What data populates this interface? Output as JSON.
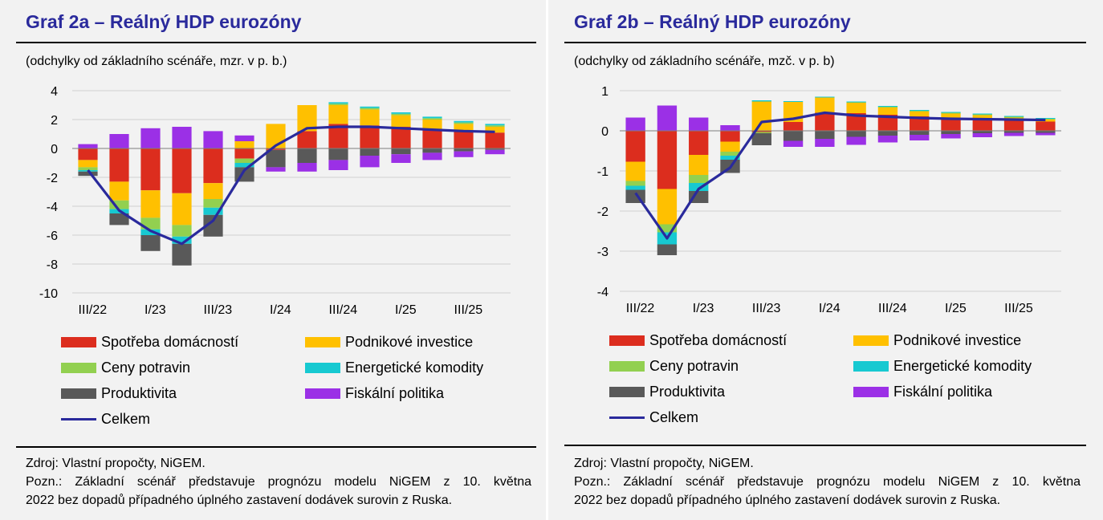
{
  "panels": [
    {
      "title": "Graf 2a – Reálný HDP eurozóny",
      "subtitle": "(odchylky od základního scénáře, mzr. v p. b.)",
      "source": "Zdroj: Vlastní propočty, NiGEM.",
      "note_line1": "Pozn.: Základní scénář představuje prognózu modelu NiGEM z 10. května",
      "note_line2": "2022 bez dopadů případného úplného zastavení dodávek surovin z Ruska."
    },
    {
      "title": "Graf 2b – Reálný HDP eurozóny",
      "subtitle": "(odchylky od základního scénáře, mzč. v p. b)",
      "source": "Zdroj: Vlastní propočty, NiGEM.",
      "note_line1": "Pozn.: Základní scénář představuje prognózu modelu NiGEM z 10. května",
      "note_line2": "2022 bez dopadů případného úplného zastavení dodávek surovin z Ruska."
    }
  ],
  "legend": {
    "spotreba": "Spotřeba domácností",
    "investice": "Podnikové investice",
    "potraviny": "Ceny potravin",
    "energie": "Energetické komodity",
    "produktivita": "Produktivita",
    "fiskal": "Fiskální politika",
    "celkem": "Celkem"
  },
  "colors": {
    "spotreba": "#dc2d1e",
    "investice": "#ffc000",
    "potraviny": "#92d050",
    "energie": "#17c9d1",
    "produktivita": "#595959",
    "fiskal": "#9b30e6",
    "celkem": "#2a2a9c"
  },
  "chart_data": [
    {
      "type": "bar",
      "stacked": true,
      "categories": [
        "III/22",
        "IV/22",
        "I/23",
        "II/23",
        "III/23",
        "IV/23",
        "I/24",
        "II/24",
        "III/24",
        "IV/24",
        "I/25",
        "II/25",
        "III/25",
        "IV/25"
      ],
      "x_tick_labels": [
        "III/22",
        "I/23",
        "III/23",
        "I/24",
        "III/24",
        "I/25",
        "III/25"
      ],
      "ylim": [
        -10,
        4
      ],
      "yticks": [
        -10,
        -8,
        -6,
        -4,
        -2,
        0,
        2,
        4
      ],
      "grid": true,
      "series": [
        {
          "name": "Spotřeba domácností",
          "key": "spotreba",
          "values": [
            -0.8,
            -2.3,
            -2.9,
            -3.1,
            -2.4,
            -0.7,
            -0.1,
            1.2,
            1.7,
            1.6,
            1.5,
            1.3,
            1.2,
            1.1
          ]
        },
        {
          "name": "Podnikové investice",
          "key": "investice",
          "values": [
            -0.5,
            -1.3,
            -1.9,
            -2.2,
            -1.1,
            0.5,
            1.7,
            1.8,
            1.3,
            1.1,
            0.8,
            0.7,
            0.5,
            0.4
          ]
        },
        {
          "name": "Ceny potravin",
          "key": "potraviny",
          "values": [
            -0.2,
            -0.6,
            -0.8,
            -0.8,
            -0.6,
            -0.3,
            0.0,
            0.0,
            0.1,
            0.1,
            0.1,
            0.1,
            0.1,
            0.1
          ]
        },
        {
          "name": "Energetické komodity",
          "key": "energie",
          "values": [
            -0.1,
            -0.3,
            -0.4,
            -0.5,
            -0.5,
            -0.3,
            0.0,
            0.0,
            0.1,
            0.1,
            0.1,
            0.1,
            0.1,
            0.1
          ]
        },
        {
          "name": "Produktivita",
          "key": "produktivita",
          "values": [
            -0.3,
            -0.8,
            -1.1,
            -1.5,
            -1.5,
            -1.0,
            -1.2,
            -1.0,
            -0.8,
            -0.5,
            -0.4,
            -0.3,
            -0.2,
            -0.1
          ]
        },
        {
          "name": "Fiskální politika",
          "key": "fiskal",
          "values": [
            0.3,
            1.0,
            1.4,
            1.5,
            1.2,
            0.4,
            -0.3,
            -0.6,
            -0.7,
            -0.8,
            -0.6,
            -0.5,
            -0.4,
            -0.3
          ]
        }
      ],
      "line": {
        "name": "Celkem",
        "key": "celkem",
        "values": [
          -1.5,
          -4.3,
          -5.7,
          -6.6,
          -5.0,
          -1.5,
          0.2,
          1.4,
          1.5,
          1.5,
          1.4,
          1.3,
          1.2,
          1.15
        ]
      }
    },
    {
      "type": "bar",
      "stacked": true,
      "categories": [
        "III/22",
        "IV/22",
        "I/23",
        "II/23",
        "III/23",
        "IV/23",
        "I/24",
        "II/24",
        "III/24",
        "IV/24",
        "I/25",
        "II/25",
        "III/25",
        "IV/25"
      ],
      "x_tick_labels": [
        "III/22",
        "I/23",
        "III/23",
        "I/24",
        "III/24",
        "I/25",
        "III/25"
      ],
      "ylim": [
        -4,
        1
      ],
      "yticks": [
        -4,
        -3,
        -2,
        -1,
        0,
        1
      ],
      "grid": true,
      "series": [
        {
          "name": "Spotřeba domácností",
          "key": "spotreba",
          "values": [
            -0.77,
            -1.45,
            -0.6,
            -0.27,
            -0.03,
            0.22,
            0.45,
            0.44,
            0.4,
            0.36,
            0.33,
            0.31,
            0.27,
            0.23
          ]
        },
        {
          "name": "Podnikové investice",
          "key": "investice",
          "values": [
            -0.48,
            -0.88,
            -0.5,
            -0.25,
            0.73,
            0.5,
            0.38,
            0.26,
            0.18,
            0.12,
            0.1,
            0.08,
            0.06,
            0.05
          ]
        },
        {
          "name": "Ceny potravin",
          "key": "potraviny",
          "values": [
            -0.12,
            -0.2,
            -0.2,
            -0.1,
            -0.03,
            0.0,
            0.0,
            0.01,
            0.02,
            0.02,
            0.02,
            0.02,
            0.02,
            0.02
          ]
        },
        {
          "name": "Energetické komodity",
          "key": "energie",
          "values": [
            -0.1,
            -0.3,
            -0.2,
            -0.1,
            0.03,
            0.02,
            0.02,
            0.02,
            0.02,
            0.02,
            0.02,
            0.02,
            0.02,
            0.02
          ]
        },
        {
          "name": "Produktivita",
          "key": "produktivita",
          "values": [
            -0.33,
            -0.27,
            -0.3,
            -0.33,
            -0.3,
            -0.25,
            -0.2,
            -0.15,
            -0.12,
            -0.1,
            -0.08,
            -0.06,
            -0.05,
            -0.05
          ]
        },
        {
          "name": "Fiskální politika",
          "key": "fiskal",
          "values": [
            0.33,
            0.63,
            0.33,
            0.14,
            0.0,
            -0.15,
            -0.2,
            -0.2,
            -0.17,
            -0.14,
            -0.11,
            -0.1,
            -0.08,
            -0.06
          ]
        }
      ],
      "line": {
        "name": "Celkem",
        "key": "celkem",
        "values": [
          -1.55,
          -2.68,
          -1.45,
          -0.92,
          0.22,
          0.3,
          0.45,
          0.38,
          0.35,
          0.32,
          0.3,
          0.29,
          0.28,
          0.27
        ]
      }
    }
  ]
}
